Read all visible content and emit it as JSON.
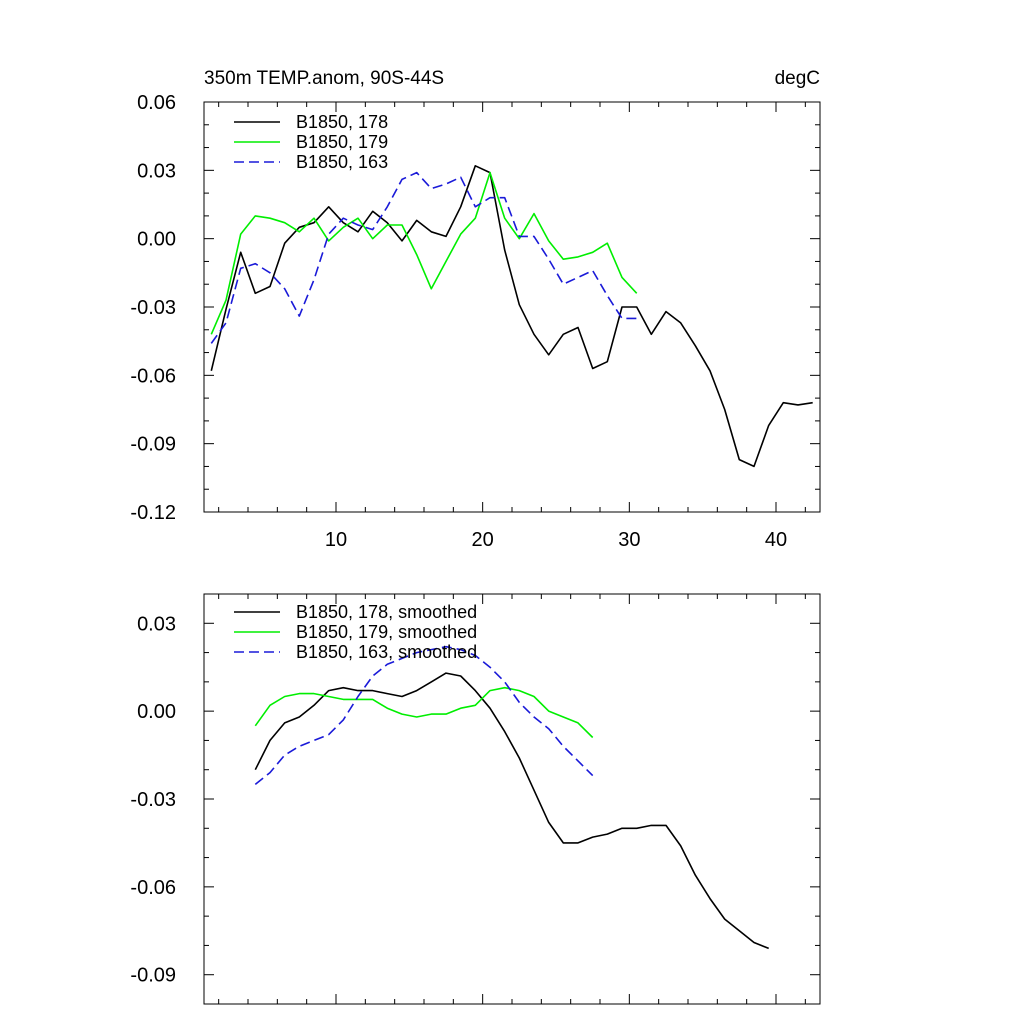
{
  "chart_data": [
    {
      "type": "line",
      "title": "350m TEMP.anom, 90S-44S",
      "units_label": "degC",
      "xlim": [
        1,
        43
      ],
      "ylim": [
        -0.12,
        0.06
      ],
      "x_ticks": [
        10,
        20,
        30,
        40
      ],
      "x_tick_labels": [
        "10",
        "20",
        "30",
        "40"
      ],
      "y_ticks": [
        -0.12,
        -0.09,
        -0.06,
        -0.03,
        0.0,
        0.03,
        0.06
      ],
      "y_tick_labels": [
        "-0.12",
        "-0.09",
        "-0.06",
        "-0.03",
        "0.00",
        "0.03",
        "0.06"
      ],
      "legend_position": "top-left",
      "series": [
        {
          "name": "B1850, 178",
          "color": "#000000",
          "dash": "solid",
          "x": [
            1.5,
            2.5,
            3.5,
            4.5,
            5.5,
            6.5,
            7.5,
            8.5,
            9.5,
            10.5,
            11.5,
            12.5,
            13.5,
            14.5,
            15.5,
            16.5,
            17.5,
            18.5,
            19.5,
            20.5,
            21.5,
            22.5,
            23.5,
            24.5,
            25.5,
            26.5,
            27.5,
            28.5,
            29.5,
            30.5,
            31.5,
            32.5,
            33.5,
            34.5,
            35.5,
            36.5,
            37.5,
            38.5,
            39.5,
            40.5,
            41.5,
            42.5
          ],
          "values": [
            -0.058,
            -0.031,
            -0.006,
            -0.024,
            -0.021,
            -0.002,
            0.005,
            0.007,
            0.014,
            0.007,
            0.003,
            0.012,
            0.007,
            -0.001,
            0.008,
            0.003,
            0.001,
            0.014,
            0.032,
            0.029,
            -0.005,
            -0.029,
            -0.042,
            -0.051,
            -0.042,
            -0.039,
            -0.057,
            -0.054,
            -0.03,
            -0.03,
            -0.042,
            -0.032,
            -0.037,
            -0.047,
            -0.058,
            -0.075,
            -0.097,
            -0.1,
            -0.082,
            -0.072,
            -0.073,
            -0.072
          ]
        },
        {
          "name": "B1850, 179",
          "color": "#00ee00",
          "dash": "solid",
          "x": [
            1.5,
            2.5,
            3.5,
            4.5,
            5.5,
            6.5,
            7.5,
            8.5,
            9.5,
            10.5,
            11.5,
            12.5,
            13.5,
            14.5,
            15.5,
            16.5,
            17.5,
            18.5,
            19.5,
            20.5,
            21.5,
            22.5,
            23.5,
            24.5,
            25.5,
            26.5,
            27.5,
            28.5,
            29.5,
            30.5
          ],
          "values": [
            -0.042,
            -0.027,
            0.002,
            0.01,
            0.009,
            0.007,
            0.003,
            0.009,
            -0.001,
            0.005,
            0.009,
            0.0,
            0.006,
            0.006,
            -0.007,
            -0.022,
            -0.01,
            0.002,
            0.009,
            0.029,
            0.009,
            0.0,
            0.011,
            -0.001,
            -0.009,
            -0.008,
            -0.006,
            -0.002,
            -0.017,
            -0.024
          ]
        },
        {
          "name": "B1850, 163",
          "color": "#1a1ad8",
          "dash": "dashed",
          "x": [
            1.5,
            2.5,
            3.5,
            4.5,
            5.5,
            6.5,
            7.5,
            8.5,
            9.5,
            10.5,
            11.5,
            12.5,
            13.5,
            14.5,
            15.5,
            16.5,
            17.5,
            18.5,
            19.5,
            20.5,
            21.5,
            22.5,
            23.5,
            24.5,
            25.5,
            26.5,
            27.5,
            28.5,
            29.5,
            30.5
          ],
          "values": [
            -0.046,
            -0.037,
            -0.013,
            -0.011,
            -0.015,
            -0.022,
            -0.034,
            -0.018,
            0.002,
            0.009,
            0.006,
            0.004,
            0.014,
            0.026,
            0.029,
            0.022,
            0.024,
            0.027,
            0.014,
            0.018,
            0.018,
            0.001,
            0.001,
            -0.009,
            -0.02,
            -0.017,
            -0.014,
            -0.025,
            -0.035,
            -0.035
          ]
        }
      ]
    },
    {
      "type": "line",
      "xlim": [
        1,
        43
      ],
      "ylim": [
        -0.1,
        0.04
      ],
      "x_ticks": [
        10,
        20,
        30,
        40
      ],
      "y_ticks": [
        -0.09,
        -0.06,
        -0.03,
        0.0,
        0.03
      ],
      "y_tick_labels": [
        "-0.09",
        "-0.06",
        "-0.03",
        "0.00",
        "0.03"
      ],
      "legend_position": "top-left",
      "series": [
        {
          "name": "B1850, 178, smoothed",
          "color": "#000000",
          "dash": "solid",
          "x": [
            4.5,
            5.5,
            6.5,
            7.5,
            8.5,
            9.5,
            10.5,
            11.5,
            12.5,
            13.5,
            14.5,
            15.5,
            16.5,
            17.5,
            18.5,
            19.5,
            20.5,
            21.5,
            22.5,
            23.5,
            24.5,
            25.5,
            26.5,
            27.5,
            28.5,
            29.5,
            30.5,
            31.5,
            32.5,
            33.5,
            34.5,
            35.5,
            36.5,
            37.5,
            38.5,
            39.5
          ],
          "values": [
            -0.02,
            -0.01,
            -0.004,
            -0.002,
            0.002,
            0.007,
            0.008,
            0.007,
            0.007,
            0.006,
            0.005,
            0.007,
            0.01,
            0.013,
            0.012,
            0.007,
            0.001,
            -0.007,
            -0.016,
            -0.027,
            -0.038,
            -0.045,
            -0.045,
            -0.043,
            -0.042,
            -0.04,
            -0.04,
            -0.039,
            -0.039,
            -0.046,
            -0.056,
            -0.064,
            -0.071,
            -0.075,
            -0.079,
            -0.081
          ]
        },
        {
          "name": "B1850, 179, smoothed",
          "color": "#00ee00",
          "dash": "solid",
          "x": [
            4.5,
            5.5,
            6.5,
            7.5,
            8.5,
            9.5,
            10.5,
            11.5,
            12.5,
            13.5,
            14.5,
            15.5,
            16.5,
            17.5,
            18.5,
            19.5,
            20.5,
            21.5,
            22.5,
            23.5,
            24.5,
            25.5,
            26.5,
            27.5
          ],
          "values": [
            -0.005,
            0.002,
            0.005,
            0.006,
            0.006,
            0.005,
            0.004,
            0.004,
            0.004,
            0.001,
            -0.001,
            -0.002,
            -0.001,
            -0.001,
            0.001,
            0.002,
            0.007,
            0.008,
            0.007,
            0.005,
            0.0,
            -0.002,
            -0.004,
            -0.009
          ]
        },
        {
          "name": "B1850, 163, smoothed",
          "color": "#1a1ad8",
          "dash": "dashed",
          "x": [
            4.5,
            5.5,
            6.5,
            7.5,
            8.5,
            9.5,
            10.5,
            11.5,
            12.5,
            13.5,
            14.5,
            15.5,
            16.5,
            17.5,
            18.5,
            19.5,
            20.5,
            21.5,
            22.5,
            23.5,
            24.5,
            25.5,
            26.5,
            27.5
          ],
          "values": [
            -0.025,
            -0.021,
            -0.015,
            -0.012,
            -0.01,
            -0.008,
            -0.003,
            0.005,
            0.012,
            0.016,
            0.018,
            0.02,
            0.021,
            0.022,
            0.021,
            0.019,
            0.015,
            0.01,
            0.003,
            -0.002,
            -0.006,
            -0.012,
            -0.017,
            -0.022
          ]
        }
      ]
    }
  ]
}
